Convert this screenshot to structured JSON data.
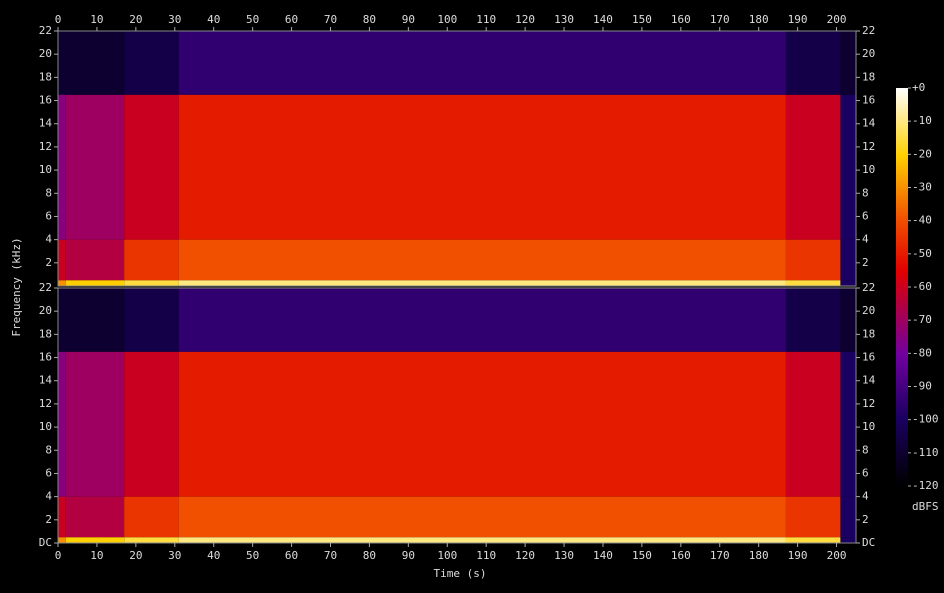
{
  "chart_data": {
    "type": "heatmap",
    "xlabel": "Time (s)",
    "ylabel": "Frequency (kHz)",
    "colorbar_label": "dBFS",
    "xlim": [
      0,
      205
    ],
    "xticks": [
      0,
      10,
      20,
      30,
      40,
      50,
      60,
      70,
      80,
      90,
      100,
      110,
      120,
      130,
      140,
      150,
      160,
      170,
      180,
      190,
      200
    ],
    "ylim": [
      0,
      22
    ],
    "yticks": [
      {
        "value": 0,
        "label": "DC"
      },
      2,
      4,
      6,
      8,
      10,
      12,
      14,
      16,
      18,
      20,
      22
    ],
    "clim": [
      -120,
      0
    ],
    "cticks": [
      {
        "value": 0,
        "label": "+0"
      },
      -10,
      -20,
      -30,
      -40,
      -50,
      -60,
      -70,
      -80,
      -90,
      -100,
      -110,
      -120
    ],
    "x_bins": [
      0,
      2,
      17,
      31,
      187,
      201,
      205
    ],
    "y_bins": [
      0,
      0.5,
      4,
      16.5,
      22
    ],
    "channels": [
      {
        "values": [
          [
            -30,
            -20,
            -15,
            -10,
            -15,
            -100
          ],
          [
            -60,
            -65,
            -45,
            -40,
            -45,
            -100
          ],
          [
            -75,
            -70,
            -60,
            -50,
            -60,
            -100
          ],
          [
            -110,
            -110,
            -105,
            -95,
            -105,
            -110
          ]
        ]
      },
      {
        "values": [
          [
            -30,
            -20,
            -15,
            -10,
            -15,
            -100
          ],
          [
            -60,
            -65,
            -45,
            -40,
            -45,
            -100
          ],
          [
            -75,
            -70,
            -60,
            -50,
            -60,
            -100
          ],
          [
            -110,
            -110,
            -105,
            -95,
            -105,
            -110
          ]
        ]
      }
    ]
  }
}
